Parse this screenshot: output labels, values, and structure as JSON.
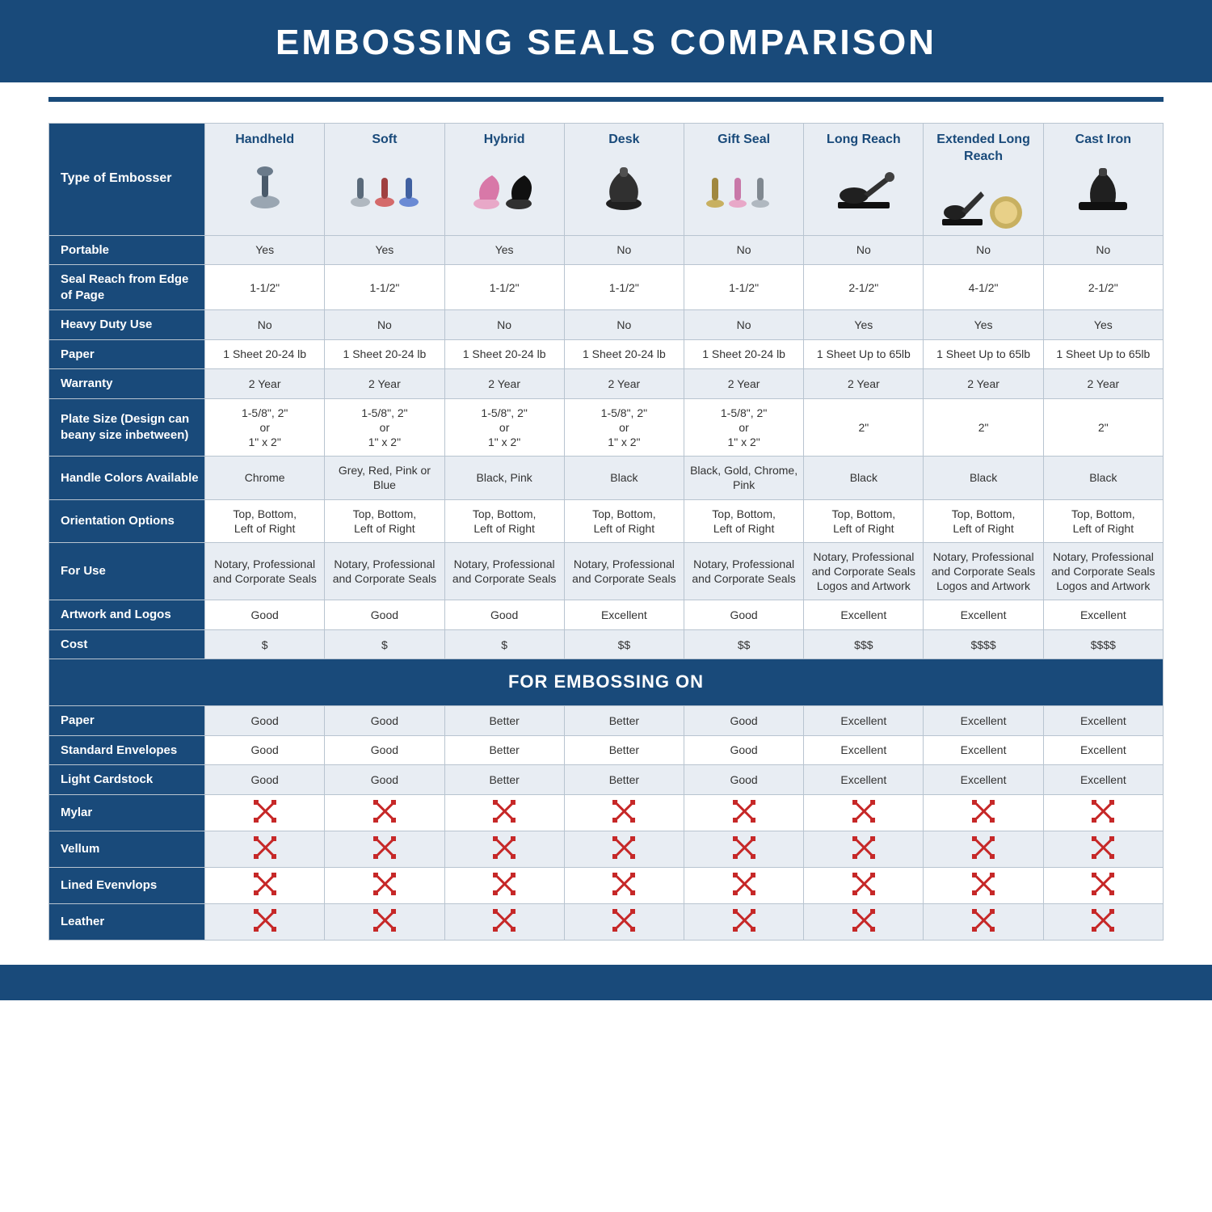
{
  "title": "EMBOSSING SEALS COMPARISON",
  "section_label": "FOR EMBOSSING ON",
  "colors": {
    "header_bg": "#194a7a",
    "header_text": "#ffffff",
    "alt_row_bg": "#e8edf3",
    "plain_row_bg": "#ffffff",
    "cell_text": "#333333",
    "border": "#b8c4d0",
    "x_icon": "#c62828"
  },
  "header": {
    "row_label": "Type of Embosser",
    "columns": [
      "Handheld",
      "Soft",
      "Hybrid",
      "Desk",
      "Gift Seal",
      "Long Reach",
      "Extended Long Reach",
      "Cast Iron"
    ]
  },
  "rows": [
    {
      "label": "Portable",
      "alt": true,
      "cells": [
        "Yes",
        "Yes",
        "Yes",
        "No",
        "No",
        "No",
        "No",
        "No"
      ]
    },
    {
      "label": "Seal Reach from Edge of Page",
      "alt": false,
      "cells": [
        "1-1/2\"",
        "1-1/2\"",
        "1-1/2\"",
        "1-1/2\"",
        "1-1/2\"",
        "2-1/2\"",
        "4-1/2\"",
        "2-1/2\""
      ]
    },
    {
      "label": "Heavy Duty Use",
      "alt": true,
      "cells": [
        "No",
        "No",
        "No",
        "No",
        "No",
        "Yes",
        "Yes",
        "Yes"
      ]
    },
    {
      "label": "Paper",
      "alt": false,
      "cells": [
        "1 Sheet 20-24 lb",
        "1 Sheet 20-24 lb",
        "1 Sheet 20-24 lb",
        "1 Sheet 20-24 lb",
        "1 Sheet 20-24 lb",
        "1 Sheet Up to 65lb",
        "1 Sheet Up to 65lb",
        "1 Sheet Up to 65lb"
      ]
    },
    {
      "label": "Warranty",
      "alt": true,
      "cells": [
        "2 Year",
        "2 Year",
        "2 Year",
        "2 Year",
        "2 Year",
        "2 Year",
        "2 Year",
        "2 Year"
      ]
    },
    {
      "label": "Plate Size (Design can beany size inbetween)",
      "alt": false,
      "cells": [
        "1-5/8\", 2\"\nor\n1\" x 2\"",
        "1-5/8\", 2\"\nor\n1\" x 2\"",
        "1-5/8\", 2\"\nor\n1\" x 2\"",
        "1-5/8\", 2\"\nor\n1\" x 2\"",
        "1-5/8\", 2\"\nor\n1\" x 2\"",
        "2\"",
        "2\"",
        "2\""
      ]
    },
    {
      "label": "Handle Colors Available",
      "alt": true,
      "cells": [
        "Chrome",
        "Grey, Red, Pink or Blue",
        "Black, Pink",
        "Black",
        "Black, Gold, Chrome, Pink",
        "Black",
        "Black",
        "Black"
      ]
    },
    {
      "label": "Orientation Options",
      "alt": false,
      "cells": [
        "Top, Bottom,\nLeft of Right",
        "Top, Bottom,\nLeft of Right",
        "Top, Bottom,\nLeft of Right",
        "Top, Bottom,\nLeft of Right",
        "Top, Bottom,\nLeft of Right",
        "Top, Bottom,\nLeft of Right",
        "Top, Bottom,\nLeft of Right",
        "Top, Bottom,\nLeft of Right"
      ]
    },
    {
      "label": "For Use",
      "alt": true,
      "cells": [
        "Notary, Professional and Corporate Seals",
        "Notary, Professional and Corporate Seals",
        "Notary, Professional and Corporate Seals",
        "Notary, Professional and Corporate Seals",
        "Notary, Professional and Corporate Seals",
        "Notary, Professional and Corporate Seals Logos and Artwork",
        "Notary, Professional and Corporate Seals Logos and Artwork",
        "Notary, Professional and Corporate Seals Logos and Artwork"
      ]
    },
    {
      "label": "Artwork and Logos",
      "alt": false,
      "cells": [
        "Good",
        "Good",
        "Good",
        "Excellent",
        "Good",
        "Excellent",
        "Excellent",
        "Excellent"
      ]
    },
    {
      "label": "Cost",
      "alt": true,
      "cells": [
        "$",
        "$",
        "$",
        "$$",
        "$$",
        "$$$",
        "$$$$",
        "$$$$"
      ]
    }
  ],
  "embossing_rows": [
    {
      "label": "Paper",
      "alt": true,
      "x": false,
      "cells": [
        "Good",
        "Good",
        "Better",
        "Better",
        "Good",
        "Excellent",
        "Excellent",
        "Excellent"
      ]
    },
    {
      "label": "Standard Envelopes",
      "alt": false,
      "x": false,
      "cells": [
        "Good",
        "Good",
        "Better",
        "Better",
        "Good",
        "Excellent",
        "Excellent",
        "Excellent"
      ]
    },
    {
      "label": "Light Cardstock",
      "alt": true,
      "x": false,
      "cells": [
        "Good",
        "Good",
        "Better",
        "Better",
        "Good",
        "Excellent",
        "Excellent",
        "Excellent"
      ]
    },
    {
      "label": "Mylar",
      "alt": false,
      "x": true,
      "cells": [
        "X",
        "X",
        "X",
        "X",
        "X",
        "X",
        "X",
        "X"
      ]
    },
    {
      "label": "Vellum",
      "alt": true,
      "x": true,
      "cells": [
        "X",
        "X",
        "X",
        "X",
        "X",
        "X",
        "X",
        "X"
      ]
    },
    {
      "label": "Lined Evenvlops",
      "alt": false,
      "x": true,
      "cells": [
        "X",
        "X",
        "X",
        "X",
        "X",
        "X",
        "X",
        "X"
      ]
    },
    {
      "label": "Leather",
      "alt": true,
      "x": true,
      "cells": [
        "X",
        "X",
        "X",
        "X",
        "X",
        "X",
        "X",
        "X"
      ]
    }
  ],
  "icon_svgs": {
    "Handheld": "<svg width='60' height='60'><ellipse cx='30' cy='48' rx='18' ry='8' fill='#9aa6b2'/><rect x='26' y='10' width='8' height='32' rx='4' fill='#4a5a6a'/><ellipse cx='30' cy='10' rx='10' ry='6' fill='#6a7a8a'/></svg>",
    "Soft": "<svg width='90' height='60'><g transform='translate(0,8)'><ellipse cx='15' cy='40' rx='12' ry='6' fill='#b0b8c0'/><rect x='11' y='10' width='8' height='26' rx='4' fill='#5a6a7a'/></g><g transform='translate(30,8)'><ellipse cx='15' cy='40' rx='12' ry='6' fill='#d46a6a'/><rect x='11' y='10' width='8' height='26' rx='4' fill='#a04040'/></g><g transform='translate(60,8)'><ellipse cx='15' cy='40' rx='12' ry='6' fill='#6a8ad4'/><rect x='11' y='10' width='8' height='26' rx='4' fill='#4060a0'/></g></svg>",
    "Hybrid": "<svg width='90' height='60'><g transform='translate(5,5)'><ellipse cx='18' cy='45' rx='16' ry='7' fill='#e8a8c8'/><path d='M10 40 Q5 20 25 10 Q40 20 30 40 Z' fill='#d878a8'/></g><g transform='translate(45,5)'><ellipse cx='18' cy='45' rx='16' ry='7' fill='#303030'/><path d='M10 40 Q5 20 25 10 Q40 20 30 40 Z' fill='#101010'/></g></svg>",
    "Desk": "<svg width='70' height='60'><ellipse cx='35' cy='50' rx='22' ry='8' fill='#202020'/><path d='M20 48 Q10 25 35 8 Q60 25 50 48 Z' fill='#303030'/><rect x='30' y='5' width='10' height='12' rx='4' fill='#505050'/></svg>",
    "Gift Seal": "<svg width='100' height='60'><g transform='translate(0,8)'><ellipse cx='14' cy='42' rx='11' ry='5' fill='#c8b060'/><rect x='10' y='10' width='8' height='28' rx='4' fill='#a08840'/></g><g transform='translate(28,8)'><ellipse cx='14' cy='42' rx='11' ry='5' fill='#e8a8c8'/><rect x='10' y='10' width='8' height='28' rx='4' fill='#c878a8'/></g><g transform='translate(56,8)'><ellipse cx='14' cy='42' rx='11' ry='5' fill='#b0b8c0'/><rect x='10' y='10' width='8' height='28' rx='4' fill='#808890'/></g></svg>",
    "Long Reach": "<svg width='80' height='60'><rect x='8' y='48' width='64' height='8' rx='2' fill='#101010'/><ellipse cx='28' cy='40' rx='18' ry='10' fill='#202020'/><path d='M40 38 L70 15 L74 20 L46 42 Z' fill='#303030'/><circle cx='72' cy='17' r='6' fill='#404040'/></svg>",
    "Extended Long Reach": "<svg width='110' height='60'><g transform='translate(0,0)'><rect x='4' y='48' width='50' height='8' rx='2' fill='#101010'/><ellipse cx='20' cy='40' rx='14' ry='9' fill='#202020'/><path d='M28 38 L52 14 L56 19 L34 42 Z' fill='#303030'/></g><g transform='translate(58,10)'><circle cx='25' cy='30' r='20' fill='#c8b060'/><circle cx='25' cy='30' r='14' fill='#e8d088'/></g></svg>",
    "Cast Iron": "<svg width='80' height='60'><rect x='10' y='48' width='60' height='10' rx='3' fill='#101010'/><path d='M25 48 Q20 25 40 10 Q60 25 55 48 Z' fill='#202020'/><rect x='35' y='6' width='10' height='10' rx='3' fill='#404040'/></svg>"
  }
}
